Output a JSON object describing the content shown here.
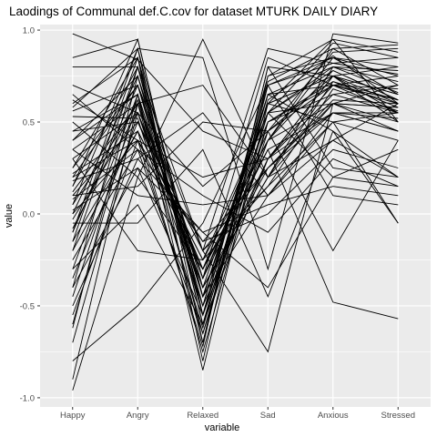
{
  "chart_data": {
    "type": "line",
    "title": "Laodings of Communal def.C.cov for dataset MTURK DAILY DIARY",
    "xlabel": "variable",
    "ylabel": "value",
    "categories": [
      "Happy",
      "Angry",
      "Relaxed",
      "Sad",
      "Anxious",
      "Stressed"
    ],
    "ylim": [
      -1.05,
      1.03
    ],
    "yticks": [
      1.0,
      0.5,
      0.0,
      -0.5,
      -1.0
    ],
    "ytick_labels": [
      "1.0",
      "0.5",
      "0.0",
      "-0.5",
      "-1.0"
    ],
    "grid": true,
    "legend": "none",
    "line_color": "#000000",
    "panel_color": "#ebebeb",
    "grid_color": "#ffffff",
    "series": [
      {
        "values": [
          0.98,
          0.84,
          0.45,
          0.3,
          0.75,
          0.55
        ]
      },
      {
        "values": [
          0.85,
          0.95,
          -0.55,
          0.55,
          0.93,
          0.85
        ]
      },
      {
        "values": [
          0.8,
          0.8,
          -0.2,
          -0.75,
          0.6,
          0.58
        ]
      },
      {
        "values": [
          0.62,
          0.4,
          -0.72,
          0.8,
          0.25,
          0.2
        ]
      },
      {
        "values": [
          0.58,
          0.9,
          0.85,
          -0.3,
          0.98,
          0.93
        ]
      },
      {
        "values": [
          0.56,
          0.7,
          -0.35,
          0.45,
          0.7,
          0.62
        ]
      },
      {
        "values": [
          0.53,
          0.52,
          -0.62,
          0.62,
          0.86,
          0.6
        ]
      },
      {
        "values": [
          0.45,
          0.65,
          -0.45,
          0.1,
          0.55,
          0.52
        ]
      },
      {
        "values": [
          0.4,
          0.75,
          -0.5,
          0.7,
          0.82,
          0.76
        ]
      },
      {
        "values": [
          0.35,
          0.6,
          -0.4,
          0.2,
          0.8,
          0.66
        ]
      },
      {
        "values": [
          0.3,
          0.55,
          -0.3,
          0.4,
          0.78,
          0.62
        ]
      },
      {
        "values": [
          0.25,
          0.85,
          -0.6,
          0.5,
          0.72,
          0.58
        ]
      },
      {
        "values": [
          0.22,
          0.45,
          -0.25,
          0.15,
          0.68,
          0.56
        ]
      },
      {
        "values": [
          0.2,
          0.7,
          -0.45,
          0.6,
          0.75,
          0.5
        ]
      },
      {
        "values": [
          0.18,
          0.3,
          0.55,
          0.1,
          0.4,
          0.2
        ]
      },
      {
        "values": [
          0.15,
          0.8,
          -0.55,
          0.72,
          0.9,
          0.7
        ]
      },
      {
        "values": [
          0.12,
          0.6,
          -0.35,
          0.35,
          0.55,
          0.45
        ]
      },
      {
        "values": [
          0.1,
          0.5,
          -0.2,
          0.25,
          0.62,
          0.6
        ]
      },
      {
        "values": [
          0.08,
          0.35,
          -0.65,
          0.45,
          0.75,
          0.65
        ]
      },
      {
        "values": [
          0.05,
          0.9,
          -0.45,
          0.65,
          0.7,
          0.55
        ]
      },
      {
        "values": [
          0.02,
          0.25,
          -0.1,
          0.05,
          0.15,
          0.1
        ]
      },
      {
        "values": [
          0.0,
          0.4,
          -0.3,
          0.55,
          0.8,
          0.78
        ]
      },
      {
        "values": [
          -0.03,
          0.55,
          -0.5,
          0.3,
          0.65,
          0.7
        ]
      },
      {
        "values": [
          -0.05,
          -0.05,
          0.35,
          -0.45,
          0.45,
          -0.05
        ]
      },
      {
        "values": [
          -0.08,
          0.62,
          -0.4,
          0.2,
          0.72,
          0.62
        ]
      },
      {
        "values": [
          -0.1,
          0.7,
          -0.55,
          0.75,
          0.85,
          0.8
        ]
      },
      {
        "values": [
          -0.15,
          0.45,
          -0.25,
          0.4,
          0.6,
          0.5
        ]
      },
      {
        "values": [
          -0.2,
          0.8,
          -0.6,
          0.3,
          0.55,
          0.55
        ]
      },
      {
        "values": [
          -0.25,
          0.35,
          0.1,
          -0.1,
          0.3,
          0.15
        ]
      },
      {
        "values": [
          -0.3,
          0.65,
          -0.45,
          0.6,
          0.75,
          0.6
        ]
      },
      {
        "values": [
          -0.35,
          0.5,
          -0.2,
          0.15,
          0.5,
          0.4
        ]
      },
      {
        "values": [
          -0.4,
          0.25,
          -0.55,
          0.4,
          0.85,
          0.65
        ]
      },
      {
        "values": [
          -0.45,
          0.6,
          -0.35,
          0.5,
          0.7,
          0.68
        ]
      },
      {
        "values": [
          -0.55,
          0.4,
          -0.15,
          0.0,
          0.35,
          0.25
        ]
      },
      {
        "values": [
          -0.62,
          0.75,
          -0.5,
          0.65,
          0.8,
          0.72
        ]
      },
      {
        "values": [
          -0.7,
          0.55,
          -0.4,
          0.25,
          0.6,
          0.58
        ]
      },
      {
        "values": [
          -0.8,
          -0.5,
          -0.05,
          0.7,
          0.1,
          0.05
        ]
      },
      {
        "values": [
          -0.9,
          0.6,
          -0.65,
          0.55,
          0.78,
          0.62
        ]
      },
      {
        "values": [
          -0.96,
          0.2,
          -0.3,
          0.35,
          -0.48,
          -0.57
        ]
      },
      {
        "values": [
          0.5,
          0.2,
          0.95,
          0.2,
          0.6,
          0.45
        ]
      },
      {
        "values": [
          0.1,
          0.15,
          0.5,
          0.45,
          -0.2,
          0.4
        ]
      },
      {
        "values": [
          0.6,
          0.85,
          -0.8,
          0.75,
          0.95,
          0.5
        ]
      },
      {
        "values": [
          0.3,
          -0.2,
          -0.25,
          0.55,
          0.2,
          0.15
        ]
      },
      {
        "values": [
          -0.1,
          0.9,
          -0.7,
          0.8,
          0.75,
          0.8
        ]
      },
      {
        "values": [
          0.2,
          0.4,
          0.2,
          0.3,
          0.7,
          0.75
        ]
      },
      {
        "values": [
          -0.5,
          0.3,
          -0.1,
          -0.4,
          0.2,
          0.35
        ]
      },
      {
        "values": [
          0.4,
          0.65,
          -0.85,
          0.6,
          0.5,
          0.55
        ]
      },
      {
        "values": [
          0.7,
          0.55,
          0.15,
          0.45,
          0.88,
          0.9
        ]
      },
      {
        "values": [
          0.0,
          0.75,
          -0.35,
          0.85,
          0.7,
          0.6
        ]
      },
      {
        "values": [
          -0.2,
          0.45,
          -0.75,
          0.5,
          0.65,
          0.55
        ]
      },
      {
        "values": [
          0.15,
          0.95,
          -0.55,
          0.4,
          0.9,
          0.92
        ]
      },
      {
        "values": [
          0.35,
          0.1,
          0.05,
          0.1,
          0.5,
          -0.05
        ]
      },
      {
        "values": [
          -0.3,
          0.05,
          -0.6,
          0.65,
          0.45,
          0.2
        ]
      },
      {
        "values": [
          0.25,
          0.7,
          -0.2,
          0.9,
          0.82,
          0.85
        ]
      },
      {
        "values": [
          0.05,
          0.6,
          0.7,
          0.2,
          0.4,
          0.6
        ]
      },
      {
        "values": [
          -0.4,
          0.8,
          -0.45,
          0.3,
          0.75,
          0.65
        ]
      },
      {
        "values": [
          0.45,
          0.5,
          -0.3,
          0.55,
          0.6,
          0.7
        ]
      },
      {
        "values": [
          -0.6,
          0.65,
          -0.7,
          0.7,
          0.85,
          0.75
        ]
      },
      {
        "values": [
          0.65,
          0.35,
          -0.15,
          0.25,
          0.55,
          0.45
        ]
      },
      {
        "values": [
          -0.15,
          0.85,
          -0.4,
          0.6,
          0.95,
          0.88
        ]
      }
    ]
  }
}
